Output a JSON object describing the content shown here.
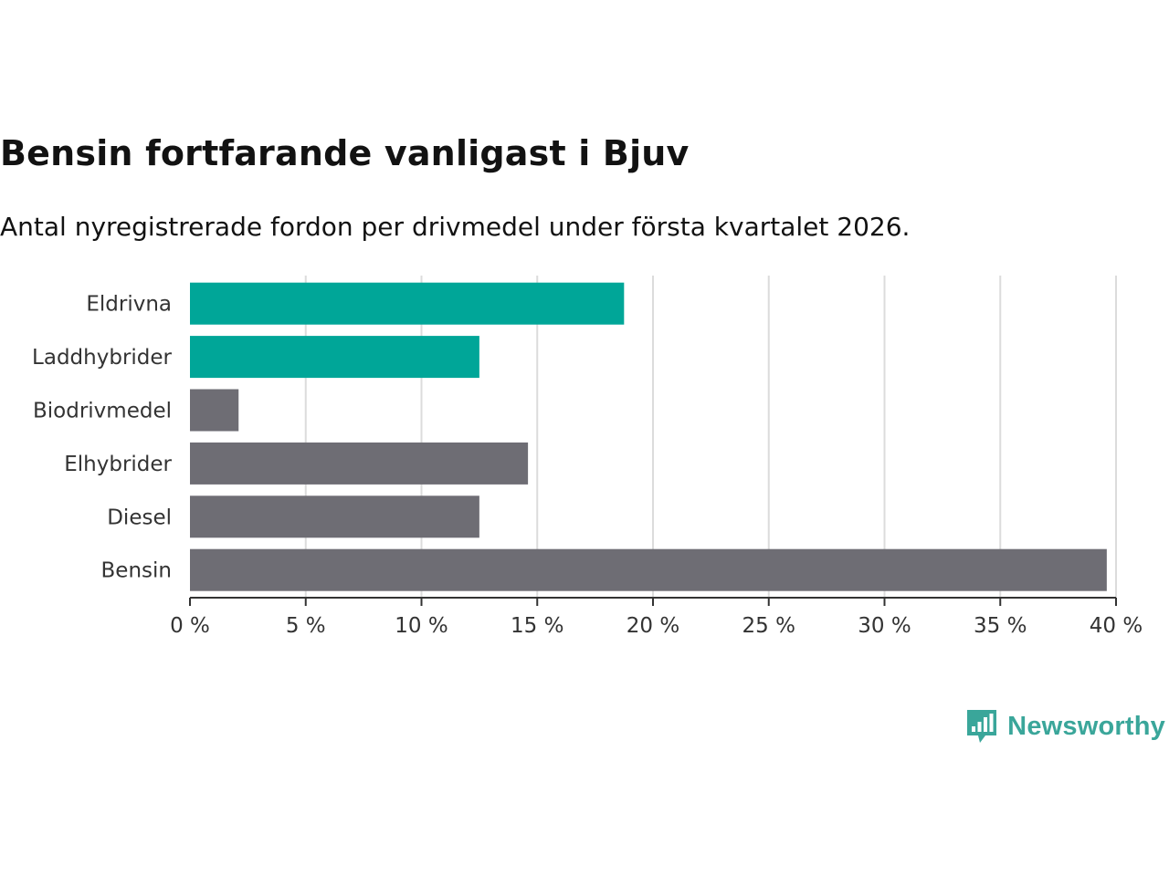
{
  "colors": {
    "highlight": "#00a698",
    "neutral": "#6e6d74",
    "grid": "#dcdcdc",
    "axis": "#333333",
    "brand": "#3aa69a"
  },
  "brand": {
    "name": "Newsworthy",
    "icon": "bar-chart-speech-bubble-icon"
  },
  "chart_data": {
    "type": "bar",
    "orientation": "horizontal",
    "title": "Bensin fortfarande vanligast i Bjuv",
    "subtitle": "Antal nyregistrerade fordon per drivmedel under första kvartalet 2026.",
    "xlabel": "",
    "ylabel": "",
    "xlim": [
      0,
      40
    ],
    "grid": true,
    "unit": "%",
    "ticks": [
      0,
      5,
      10,
      15,
      20,
      25,
      30,
      35,
      40
    ],
    "tick_labels": [
      "0 %",
      "5 %",
      "10 %",
      "15 %",
      "20 %",
      "25 %",
      "30 %",
      "35 %",
      "40 %"
    ],
    "categories": [
      "Eldrivna",
      "Laddhybrider",
      "Biodrivmedel",
      "Elhybrider",
      "Diesel",
      "Bensin"
    ],
    "values": [
      18.75,
      12.5,
      2.1,
      14.6,
      12.5,
      39.6
    ],
    "highlight": [
      true,
      true,
      false,
      false,
      false,
      false
    ]
  }
}
